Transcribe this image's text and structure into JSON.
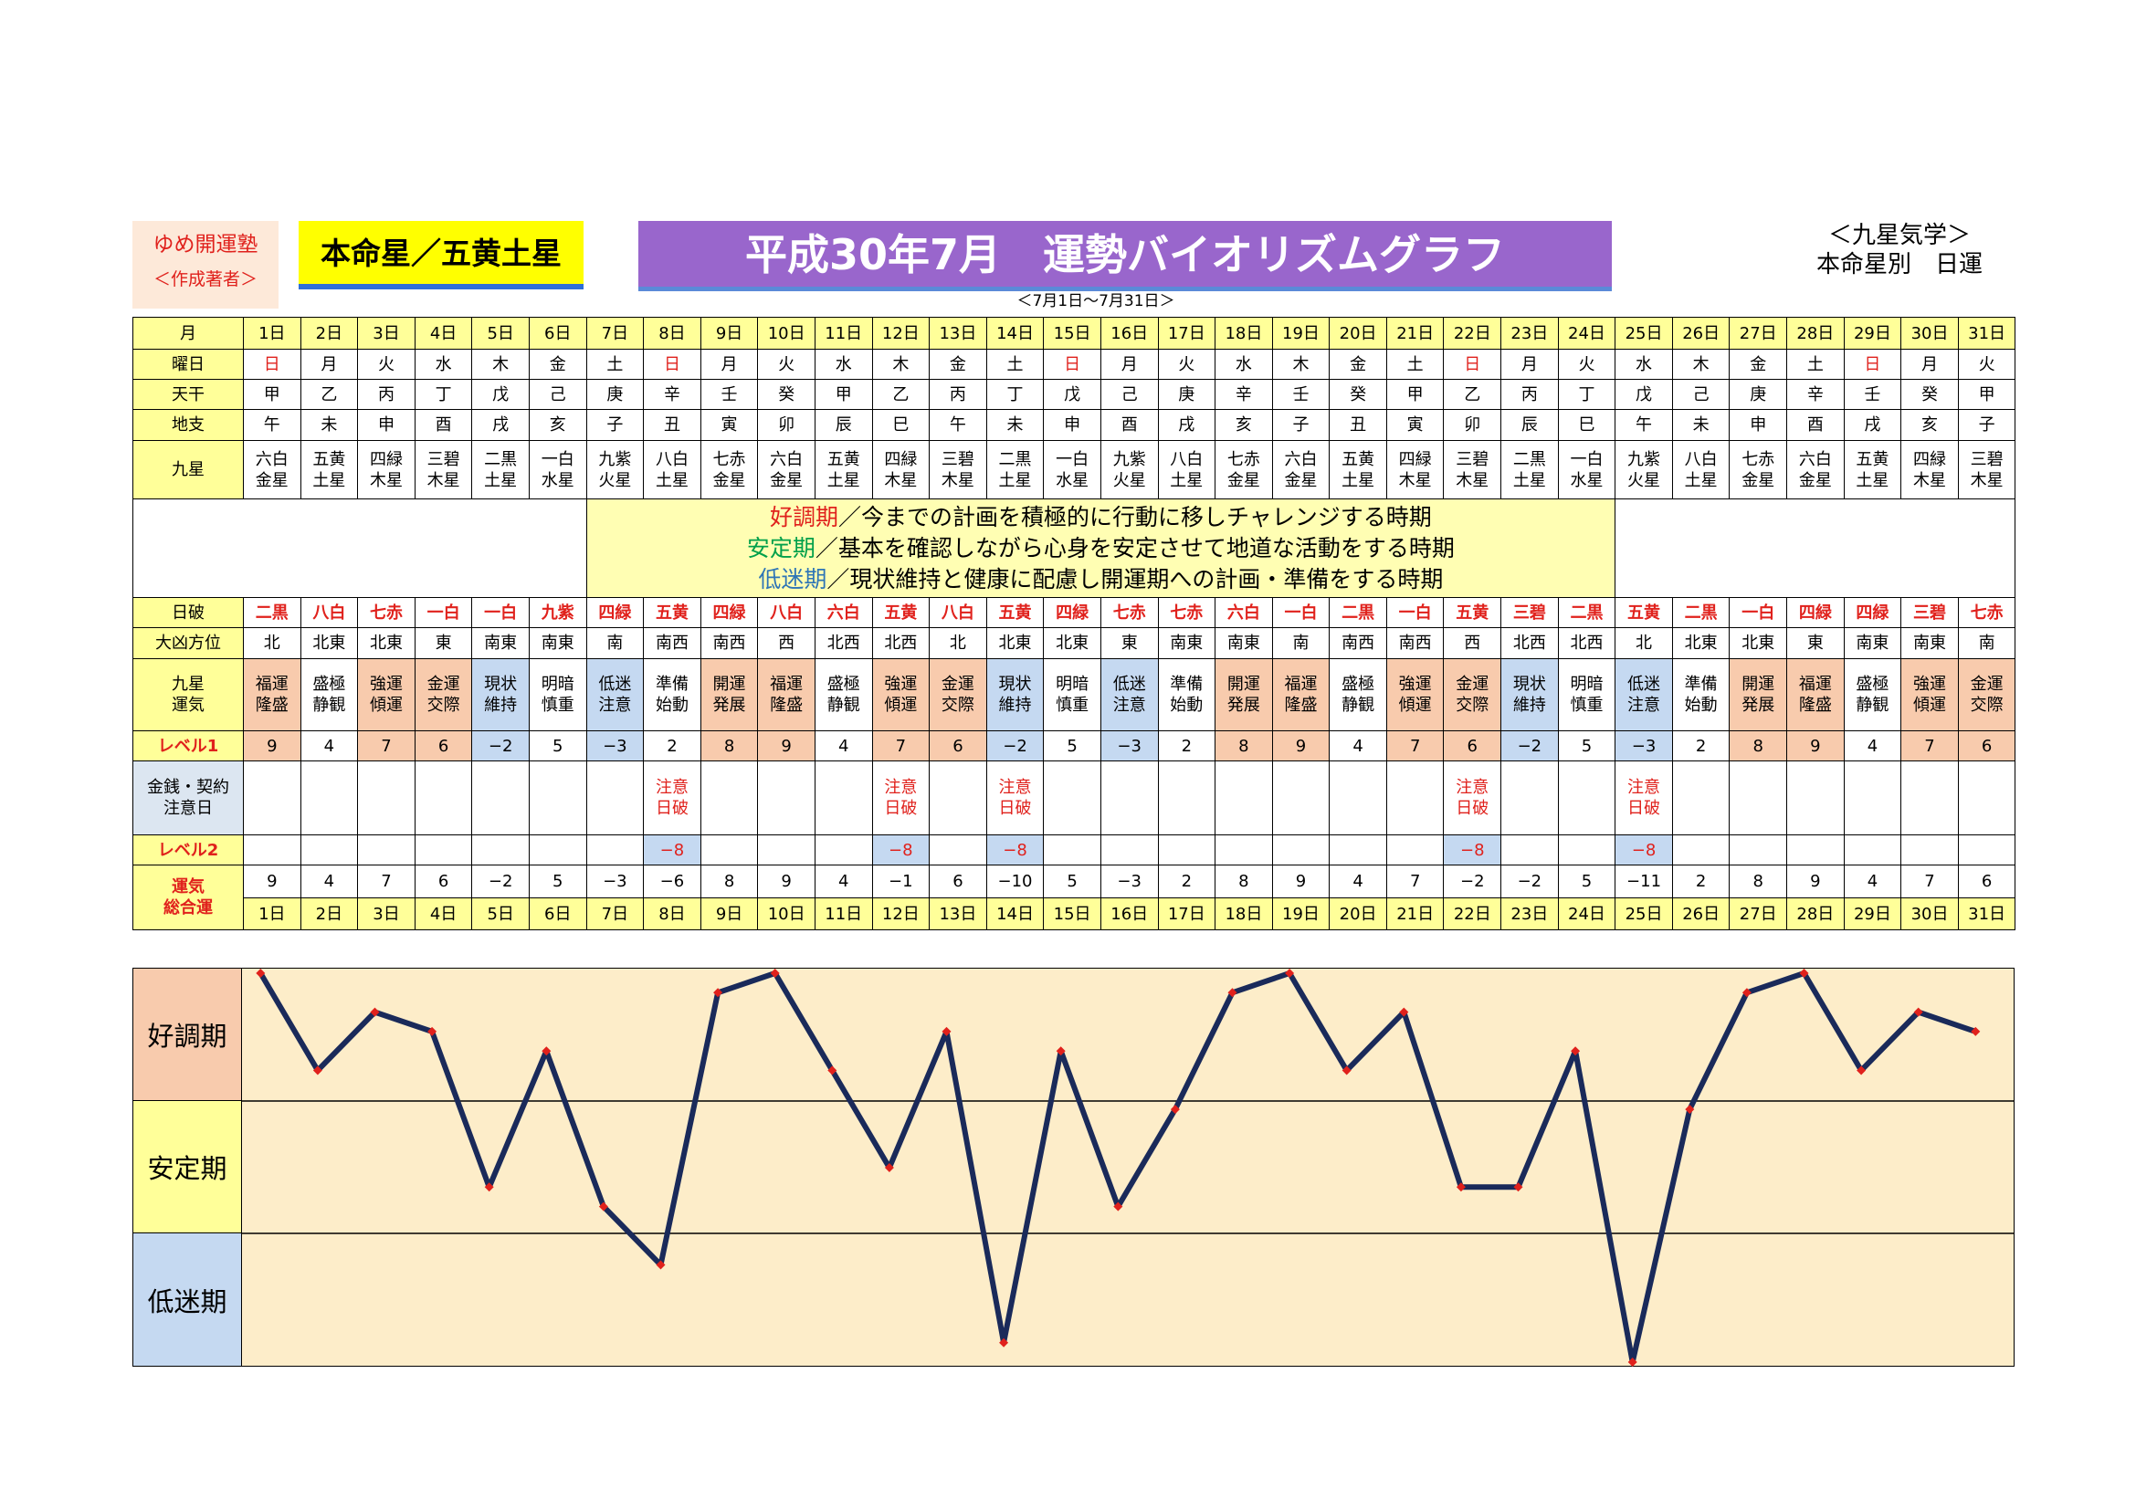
{
  "brand": {
    "line1": "ゆめ開運塾",
    "line2": "＜作成著者＞"
  },
  "star_label": "本命星／五黄土星",
  "title": "平成30年7月　運勢バイオリズムグラフ",
  "corner": {
    "line1": "＜九星気学＞",
    "line2": "本命星別　日運"
  },
  "range": "＜7月1日～7月31日＞",
  "row_labels": {
    "month": "月",
    "weekday": "曜日",
    "tenkan": "天干",
    "chishi": "地支",
    "kyusei": "九星",
    "hiha": "日破",
    "daikyo": "大凶方位",
    "unki": "九星\n運気",
    "level1": "レベル1",
    "money": "金銭・契約\n注意日",
    "level2": "レベル2",
    "total": "運気\n総合運"
  },
  "legend": {
    "line1_key": "好調期",
    "line1_text": "／今までの計画を積極的に行動に移しチャレンジする時期",
    "line2_key": "安定期",
    "line2_text": "／基本を確認しながら心身を安定させて地道な活動をする時期",
    "line3_key": "低迷期",
    "line3_text": "／現状維持と健康に配慮し開運期への計画・準備をする時期"
  },
  "band_labels": [
    "好調期",
    "安定期",
    "低迷期"
  ],
  "colors": {
    "good": "#f8cbad",
    "stable": "#ffff99",
    "low": "#c5d9f1",
    "line": "#1a2a5a",
    "marker": "#e0211c",
    "title_bg": "#9966cc"
  },
  "days": [
    "1日",
    "2日",
    "3日",
    "4日",
    "5日",
    "6日",
    "7日",
    "8日",
    "9日",
    "10日",
    "11日",
    "12日",
    "13日",
    "14日",
    "15日",
    "16日",
    "17日",
    "18日",
    "19日",
    "20日",
    "21日",
    "22日",
    "23日",
    "24日",
    "25日",
    "26日",
    "27日",
    "28日",
    "29日",
    "30日",
    "31日"
  ],
  "weekdays": [
    "日",
    "月",
    "火",
    "水",
    "木",
    "金",
    "土",
    "日",
    "月",
    "火",
    "水",
    "木",
    "金",
    "土",
    "日",
    "月",
    "火",
    "水",
    "木",
    "金",
    "土",
    "日",
    "月",
    "火",
    "水",
    "木",
    "金",
    "土",
    "日",
    "月",
    "火"
  ],
  "tenkan": [
    "甲",
    "乙",
    "丙",
    "丁",
    "戊",
    "己",
    "庚",
    "辛",
    "壬",
    "癸",
    "甲",
    "乙",
    "丙",
    "丁",
    "戊",
    "己",
    "庚",
    "辛",
    "壬",
    "癸",
    "甲",
    "乙",
    "丙",
    "丁",
    "戊",
    "己",
    "庚",
    "辛",
    "壬",
    "癸",
    "甲"
  ],
  "chishi": [
    "午",
    "未",
    "申",
    "酉",
    "戌",
    "亥",
    "子",
    "丑",
    "寅",
    "卯",
    "辰",
    "巳",
    "午",
    "未",
    "申",
    "酉",
    "戌",
    "亥",
    "子",
    "丑",
    "寅",
    "卯",
    "辰",
    "巳",
    "午",
    "未",
    "申",
    "酉",
    "戌",
    "亥",
    "子"
  ],
  "kyusei": [
    [
      "六白",
      "金星"
    ],
    [
      "五黄",
      "土星"
    ],
    [
      "四緑",
      "木星"
    ],
    [
      "三碧",
      "木星"
    ],
    [
      "二黒",
      "土星"
    ],
    [
      "一白",
      "水星"
    ],
    [
      "九紫",
      "火星"
    ],
    [
      "八白",
      "土星"
    ],
    [
      "七赤",
      "金星"
    ],
    [
      "六白",
      "金星"
    ],
    [
      "五黄",
      "土星"
    ],
    [
      "四緑",
      "木星"
    ],
    [
      "三碧",
      "木星"
    ],
    [
      "二黒",
      "土星"
    ],
    [
      "一白",
      "水星"
    ],
    [
      "九紫",
      "火星"
    ],
    [
      "八白",
      "土星"
    ],
    [
      "七赤",
      "金星"
    ],
    [
      "六白",
      "金星"
    ],
    [
      "五黄",
      "土星"
    ],
    [
      "四緑",
      "木星"
    ],
    [
      "三碧",
      "木星"
    ],
    [
      "二黒",
      "土星"
    ],
    [
      "一白",
      "水星"
    ],
    [
      "九紫",
      "火星"
    ],
    [
      "八白",
      "土星"
    ],
    [
      "七赤",
      "金星"
    ],
    [
      "六白",
      "金星"
    ],
    [
      "五黄",
      "土星"
    ],
    [
      "四緑",
      "木星"
    ],
    [
      "三碧",
      "木星"
    ]
  ],
  "hiha": [
    "二黒",
    "八白",
    "七赤",
    "一白",
    "一白",
    "九紫",
    "四緑",
    "五黄",
    "四緑",
    "八白",
    "六白",
    "五黄",
    "八白",
    "五黄",
    "四緑",
    "七赤",
    "七赤",
    "六白",
    "一白",
    "二黒",
    "一白",
    "五黄",
    "三碧",
    "二黒",
    "五黄",
    "二黒",
    "一白",
    "四緑",
    "四緑",
    "三碧",
    "七赤"
  ],
  "daikyo": [
    "北",
    "北東",
    "北東",
    "東",
    "南東",
    "南東",
    "南",
    "南西",
    "南西",
    "西",
    "北西",
    "北西",
    "北",
    "北東",
    "北東",
    "東",
    "南東",
    "南東",
    "南",
    "南西",
    "南西",
    "西",
    "北西",
    "北西",
    "北",
    "北東",
    "北東",
    "東",
    "南東",
    "南東",
    "南"
  ],
  "unki": [
    [
      "福運",
      "隆盛"
    ],
    [
      "盛極",
      "静観"
    ],
    [
      "強運",
      "傾運"
    ],
    [
      "金運",
      "交際"
    ],
    [
      "現状",
      "維持"
    ],
    [
      "明暗",
      "慎重"
    ],
    [
      "低迷",
      "注意"
    ],
    [
      "準備",
      "始動"
    ],
    [
      "開運",
      "発展"
    ],
    [
      "福運",
      "隆盛"
    ],
    [
      "盛極",
      "静観"
    ],
    [
      "強運",
      "傾運"
    ],
    [
      "金運",
      "交際"
    ],
    [
      "現状",
      "維持"
    ],
    [
      "明暗",
      "慎重"
    ],
    [
      "低迷",
      "注意"
    ],
    [
      "準備",
      "始動"
    ],
    [
      "開運",
      "発展"
    ],
    [
      "福運",
      "隆盛"
    ],
    [
      "盛極",
      "静観"
    ],
    [
      "強運",
      "傾運"
    ],
    [
      "金運",
      "交際"
    ],
    [
      "現状",
      "維持"
    ],
    [
      "明暗",
      "慎重"
    ],
    [
      "低迷",
      "注意"
    ],
    [
      "準備",
      "始動"
    ],
    [
      "開運",
      "発展"
    ],
    [
      "福運",
      "隆盛"
    ],
    [
      "盛極",
      "静観"
    ],
    [
      "強運",
      "傾運"
    ],
    [
      "金運",
      "交際"
    ]
  ],
  "level1": [
    "9",
    "4",
    "7",
    "6",
    "−2",
    "5",
    "−3",
    "2",
    "8",
    "9",
    "4",
    "7",
    "6",
    "−2",
    "5",
    "−3",
    "2",
    "8",
    "9",
    "4",
    "7",
    "6",
    "−2",
    "5",
    "−3",
    "2",
    "8",
    "9",
    "4",
    "7",
    "6"
  ],
  "money": [
    "",
    "",
    "",
    "",
    "",
    "",
    "",
    "注意\n日破",
    "",
    "",
    "",
    "注意\n日破",
    "",
    "注意\n日破",
    "",
    "",
    "",
    "",
    "",
    "",
    "",
    "注意\n日破",
    "",
    "",
    "注意\n日破",
    "",
    "",
    "",
    "",
    "",
    ""
  ],
  "level2": [
    "",
    "",
    "",
    "",
    "",
    "",
    "",
    "−8",
    "",
    "",
    "",
    "−8",
    "",
    "−8",
    "",
    "",
    "",
    "",
    "",
    "",
    "",
    "−8",
    "",
    "",
    "−8",
    "",
    "",
    "",
    "",
    "",
    ""
  ],
  "total": [
    "9",
    "4",
    "7",
    "6",
    "−2",
    "5",
    "−3",
    "−6",
    "8",
    "9",
    "4",
    "−1",
    "6",
    "−10",
    "5",
    "−3",
    "2",
    "8",
    "9",
    "4",
    "7",
    "−2",
    "−2",
    "5",
    "−11",
    "2",
    "8",
    "9",
    "4",
    "7",
    "6"
  ],
  "chart_data": {
    "type": "line",
    "title": "平成30年7月　運勢バイオリズムグラフ",
    "categories": [
      "1日",
      "2日",
      "3日",
      "4日",
      "5日",
      "6日",
      "7日",
      "8日",
      "9日",
      "10日",
      "11日",
      "12日",
      "13日",
      "14日",
      "15日",
      "16日",
      "17日",
      "18日",
      "19日",
      "20日",
      "21日",
      "22日",
      "23日",
      "24日",
      "25日",
      "26日",
      "27日",
      "28日",
      "29日",
      "30日",
      "31日"
    ],
    "series": [
      {
        "values": [
          9,
          4,
          7,
          6,
          -2,
          5,
          -3,
          -6,
          8,
          9,
          4,
          -1,
          6,
          -10,
          5,
          -3,
          2,
          8,
          9,
          4,
          7,
          -2,
          -2,
          5,
          -11,
          2,
          8,
          9,
          4,
          7,
          6
        ]
      }
    ],
    "bands": [
      "好調期",
      "安定期",
      "低迷期"
    ],
    "ylim": [
      -11,
      9
    ]
  }
}
